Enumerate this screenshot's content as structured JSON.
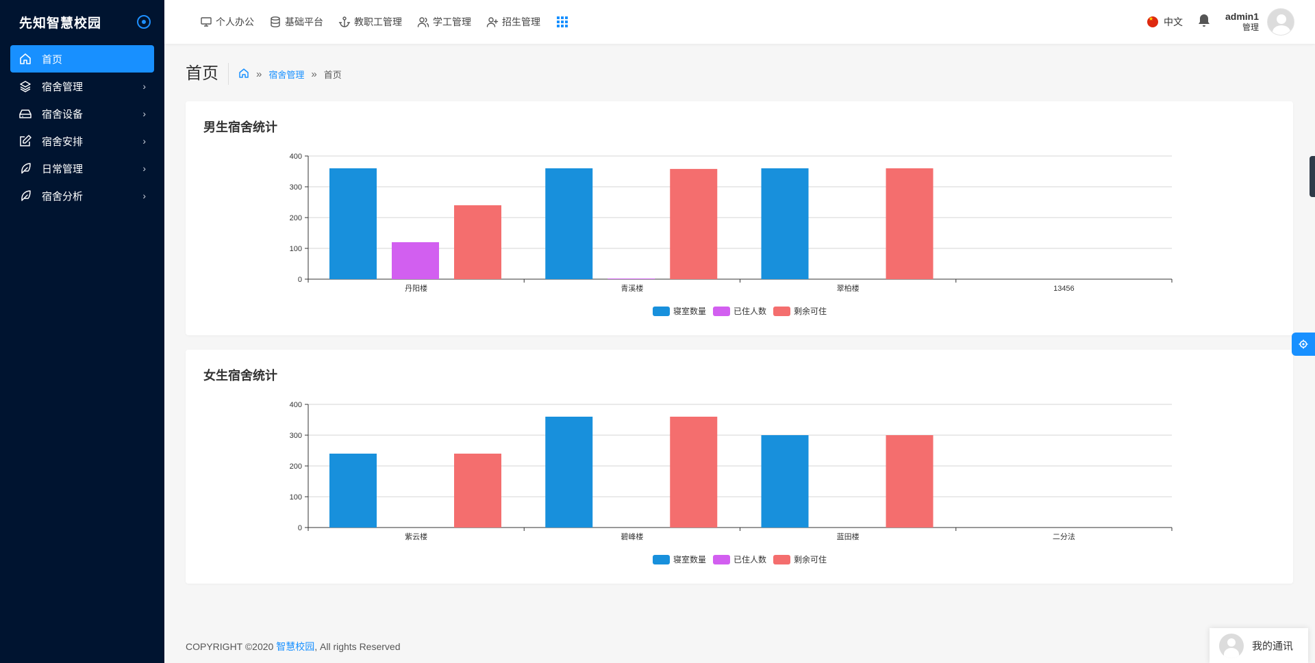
{
  "app": {
    "title": "先知智慧校园"
  },
  "sidebar": {
    "items": [
      {
        "label": "首页",
        "icon": "home-icon",
        "active": true,
        "has_children": false
      },
      {
        "label": "宿舍管理",
        "icon": "layers-icon",
        "active": false,
        "has_children": true
      },
      {
        "label": "宿舍设备",
        "icon": "hard-drive-icon",
        "active": false,
        "has_children": true
      },
      {
        "label": "宿舍安排",
        "icon": "edit-icon",
        "active": false,
        "has_children": true
      },
      {
        "label": "日常管理",
        "icon": "feather-icon",
        "active": false,
        "has_children": true
      },
      {
        "label": "宿舍分析",
        "icon": "feather-icon",
        "active": false,
        "has_children": true
      }
    ]
  },
  "topnav": {
    "items": [
      {
        "label": "个人办公",
        "icon": "monitor-icon"
      },
      {
        "label": "基础平台",
        "icon": "database-icon"
      },
      {
        "label": "教职工管理",
        "icon": "anchor-icon"
      },
      {
        "label": "学工管理",
        "icon": "users-icon"
      },
      {
        "label": "招生管理",
        "icon": "user-plus-icon"
      }
    ],
    "apps_icon": "grid-icon"
  },
  "header": {
    "language": "中文",
    "user_name": "admin1",
    "user_role": "管理"
  },
  "page": {
    "title": "首页",
    "breadcrumb": {
      "link": "宿舍管理",
      "separator": "»",
      "current": "首页"
    }
  },
  "colors": {
    "primary": "#1890ff",
    "sidebar_bg": "#001430",
    "bar_blue": "#1890dc",
    "bar_purple": "#d25ff0",
    "bar_red": "#f46e6e"
  },
  "chart_data": [
    {
      "type": "bar",
      "title": "男生宿舍统计",
      "categories": [
        "丹阳楼",
        "青溪楼",
        "翠柏楼",
        "13456"
      ],
      "ylim": [
        0,
        400
      ],
      "yticks": [
        0,
        100,
        200,
        300,
        400
      ],
      "grid": true,
      "legend_position": "bottom",
      "series": [
        {
          "name": "寝室数量",
          "color": "#1890dc",
          "values": [
            360,
            360,
            360,
            0
          ]
        },
        {
          "name": "已住人数",
          "color": "#d25ff0",
          "values": [
            120,
            2,
            0,
            0
          ]
        },
        {
          "name": "剩余可住",
          "color": "#f46e6e",
          "values": [
            240,
            358,
            360,
            0
          ]
        }
      ]
    },
    {
      "type": "bar",
      "title": "女生宿舍统计",
      "categories": [
        "紫云楼",
        "碧峰楼",
        "蓝田楼",
        "二分法"
      ],
      "ylim": [
        0,
        400
      ],
      "yticks": [
        0,
        100,
        200,
        300,
        400
      ],
      "grid": true,
      "legend_position": "bottom",
      "series": [
        {
          "name": "寝室数量",
          "color": "#1890dc",
          "values": [
            240,
            360,
            300,
            0
          ]
        },
        {
          "name": "已住人数",
          "color": "#d25ff0",
          "values": [
            0,
            0,
            0,
            0
          ]
        },
        {
          "name": "剩余可住",
          "color": "#f46e6e",
          "values": [
            240,
            360,
            300,
            0
          ]
        }
      ]
    }
  ],
  "footer": {
    "prefix": "COPYRIGHT ©2020 ",
    "link": "智慧校园",
    "suffix": ", All rights Reserved"
  },
  "chat": {
    "label": "我的通讯"
  }
}
